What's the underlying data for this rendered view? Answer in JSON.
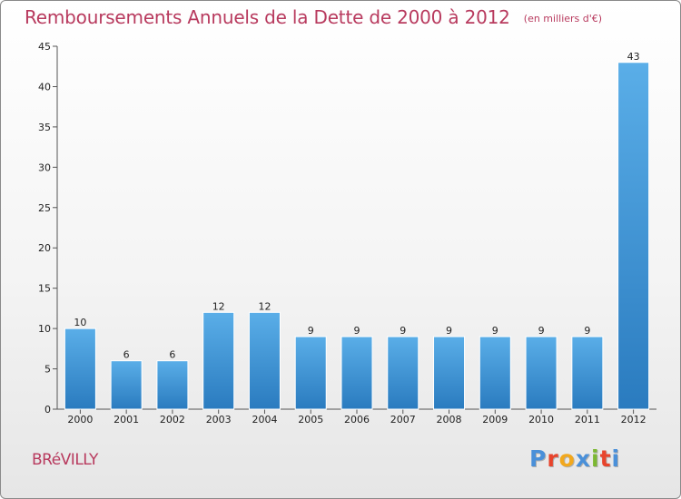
{
  "header": {
    "title": "Remboursements Annuels de la Dette de 2000 à 2012",
    "subtitle": "(en milliers d'€)"
  },
  "footer": {
    "place": "BRéVILLY",
    "logo_text": "Proxiti",
    "logo_colors": [
      "#4a90d9",
      "#e8442c",
      "#f2a81d",
      "#4a90d9",
      "#7cb832",
      "#e8442c",
      "#4a90d9"
    ]
  },
  "chart_data": {
    "type": "bar",
    "title": "Remboursements Annuels de la Dette de 2000 à 2012",
    "subtitle": "(en milliers d'€)",
    "categories": [
      "2000",
      "2001",
      "2002",
      "2003",
      "2004",
      "2005",
      "2006",
      "2007",
      "2008",
      "2009",
      "2010",
      "2011",
      "2012"
    ],
    "values": [
      10,
      6,
      6,
      12,
      12,
      9,
      9,
      9,
      9,
      9,
      9,
      9,
      43
    ],
    "ylim": [
      0,
      45
    ],
    "yticks": [
      0,
      5,
      10,
      15,
      20,
      25,
      30,
      35,
      40,
      45
    ],
    "grid": false,
    "bar_color_top": "#5aaee8",
    "bar_color_bottom": "#2a7bbf"
  }
}
